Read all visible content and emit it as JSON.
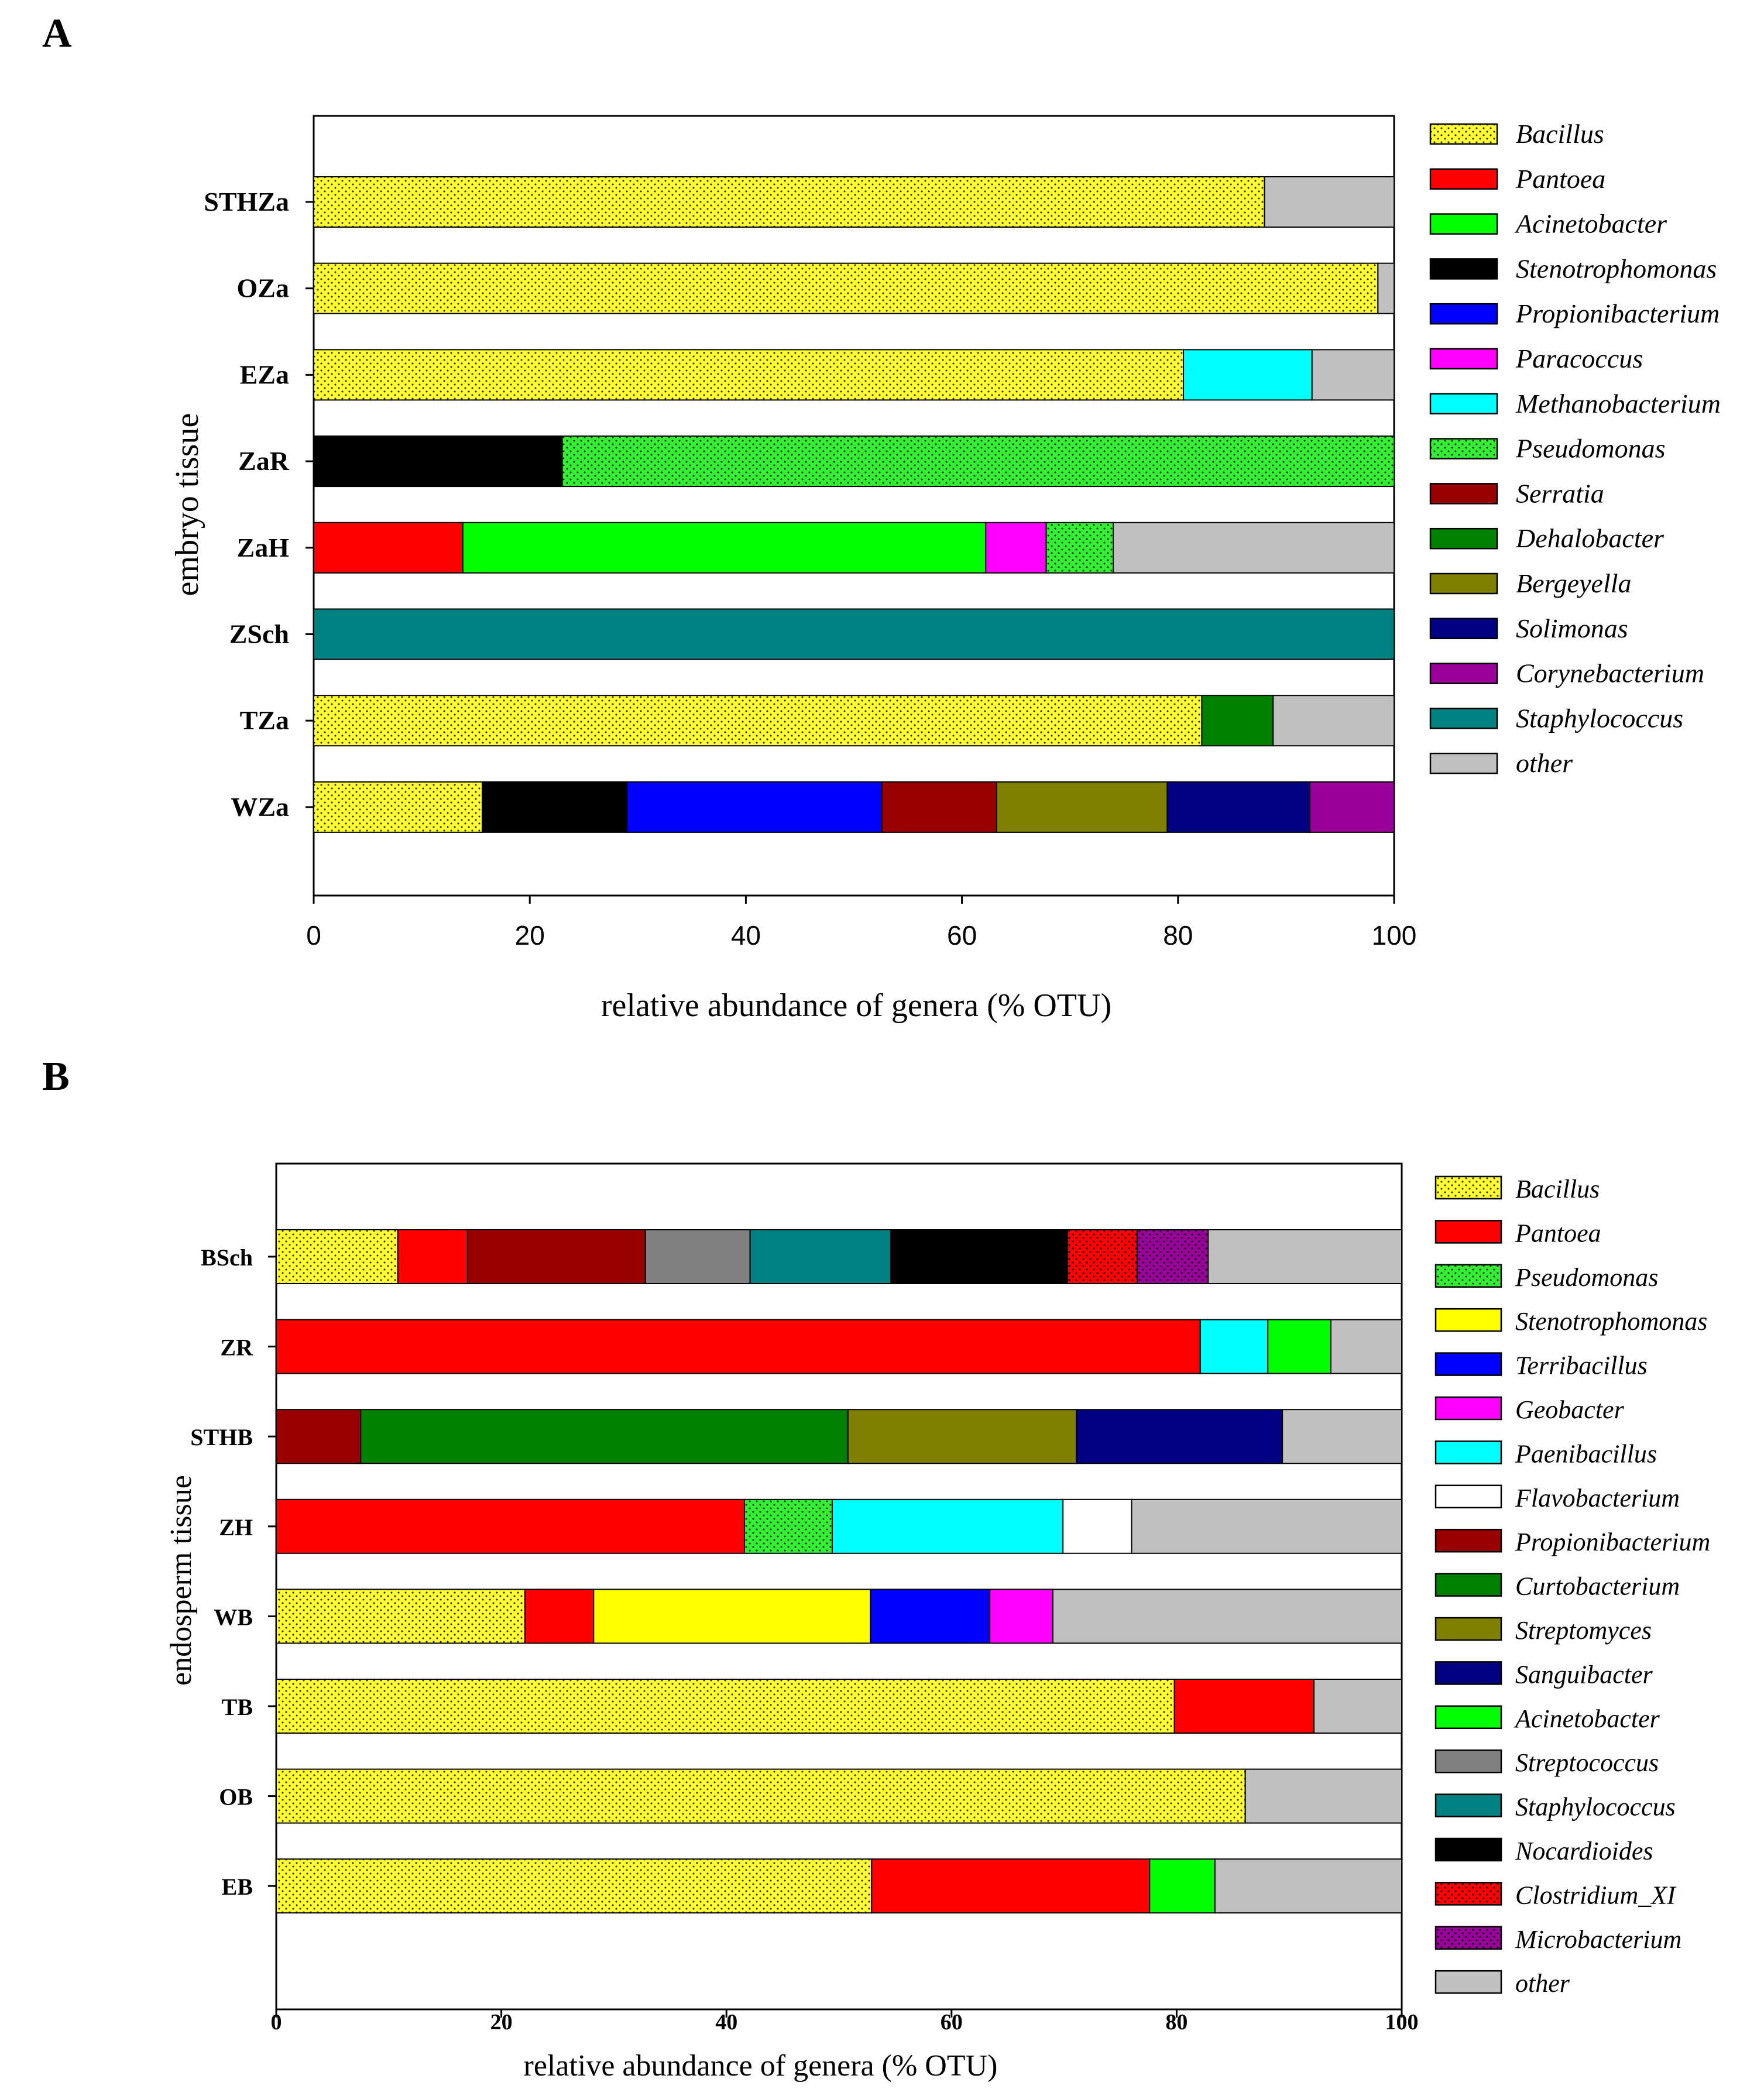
{
  "chart_data": [
    {
      "panel": "A",
      "type": "bar",
      "orientation": "horizontal",
      "stacked": true,
      "xlabel": "relative abundance of genera (% OTU)",
      "ylabel": "embryo tissue",
      "xlim": [
        0,
        100
      ],
      "xticks": [
        "0",
        "20",
        "40",
        "60",
        "80",
        "100"
      ],
      "categories": [
        "STHZa",
        "OZa",
        "EZa",
        "ZaR",
        "ZaH",
        "ZSch",
        "TZa",
        "WZa"
      ],
      "legend_position": "right",
      "series": [
        {
          "name": "Bacillus",
          "color": "#ffff33",
          "pattern": "dots",
          "values": [
            88,
            98.5,
            80.5,
            0,
            0,
            0,
            82.2,
            15.6
          ]
        },
        {
          "name": "Pantoea",
          "color": "#ff0000",
          "pattern": "solid",
          "values": [
            0,
            0,
            0,
            0,
            13.8,
            0,
            0,
            0
          ]
        },
        {
          "name": "Acinetobacter",
          "color": "#00ff00",
          "pattern": "solid",
          "values": [
            0,
            0,
            0,
            0,
            48.4,
            0,
            0,
            0
          ]
        },
        {
          "name": "Stenotrophomonas",
          "color": "#000000",
          "pattern": "solid",
          "values": [
            0,
            0,
            0,
            23,
            0,
            0,
            0,
            13.4
          ]
        },
        {
          "name": "Propionibacterium",
          "color": "#0000ff",
          "pattern": "solid",
          "values": [
            0,
            0,
            0,
            0,
            0,
            0,
            0,
            23.6
          ]
        },
        {
          "name": "Paracoccus",
          "color": "#ff00ff",
          "pattern": "solid",
          "values": [
            0,
            0,
            0,
            0,
            5.6,
            0,
            0,
            0
          ]
        },
        {
          "name": "Methanobacterium",
          "color": "#00ffff",
          "pattern": "solid",
          "values": [
            0,
            0,
            11.9,
            0,
            0,
            0,
            0,
            0
          ]
        },
        {
          "name": "Pseudomonas",
          "color": "#33ee33",
          "pattern": "dots",
          "values": [
            0,
            0,
            0,
            77,
            6.2,
            0,
            0,
            0
          ]
        },
        {
          "name": "Serratia",
          "color": "#990000",
          "pattern": "solid",
          "values": [
            0,
            0,
            0,
            0,
            0,
            0,
            0,
            10.6
          ]
        },
        {
          "name": "Dehalobacter",
          "color": "#008000",
          "pattern": "solid",
          "values": [
            0,
            0,
            0,
            0,
            0,
            0,
            6.6,
            0
          ]
        },
        {
          "name": "Bergeyella",
          "color": "#808000",
          "pattern": "solid",
          "values": [
            0,
            0,
            0,
            0,
            0,
            0,
            0,
            15.8
          ]
        },
        {
          "name": "Solimonas",
          "color": "#000080",
          "pattern": "solid",
          "values": [
            0,
            0,
            0,
            0,
            0,
            0,
            0,
            13.2
          ]
        },
        {
          "name": "Corynebacterium",
          "color": "#990099",
          "pattern": "solid",
          "values": [
            0,
            0,
            0,
            0,
            0,
            0,
            0,
            7.8
          ]
        },
        {
          "name": "Staphylococcus",
          "color": "#008080",
          "pattern": "solid",
          "values": [
            0,
            0,
            0,
            0,
            0,
            100,
            0,
            0
          ]
        },
        {
          "name": "other",
          "color": "#c0c0c0",
          "pattern": "solid",
          "values": [
            12,
            1.5,
            7.6,
            0,
            26,
            0,
            11.2,
            0
          ]
        }
      ]
    },
    {
      "panel": "B",
      "type": "bar",
      "orientation": "horizontal",
      "stacked": true,
      "xlabel": "relative abundance of genera (% OTU)",
      "ylabel": "endosperm tissue",
      "xlim": [
        0,
        100
      ],
      "xticks": [
        "0",
        "20",
        "40",
        "60",
        "80",
        "100"
      ],
      "categories": [
        "BSch",
        "ZR",
        "STHB",
        "ZH",
        "WB",
        "TB",
        "OB",
        "EB"
      ],
      "legend_position": "right",
      "series": [
        {
          "name": "Bacillus",
          "color": "#ffff33",
          "pattern": "dots",
          "values": [
            10.8,
            0,
            0,
            0,
            22.1,
            79.8,
            86.1,
            52.9
          ]
        },
        {
          "name": "Pantoea",
          "color": "#ff0000",
          "pattern": "solid",
          "values": [
            6.2,
            82.1,
            0,
            41.6,
            6.1,
            12.4,
            0,
            24.7
          ]
        },
        {
          "name": "Pseudomonas",
          "color": "#33ee33",
          "pattern": "dots",
          "values": [
            0,
            0,
            0,
            7.8,
            0,
            0,
            0,
            0
          ]
        },
        {
          "name": "Stenotrophomonas",
          "color": "#ffff00",
          "pattern": "solid",
          "values": [
            0,
            0,
            0,
            0,
            24.6,
            0,
            0,
            0
          ]
        },
        {
          "name": "Terribacillus",
          "color": "#0000ff",
          "pattern": "solid",
          "values": [
            0,
            0,
            0,
            0,
            10.6,
            0,
            0,
            0
          ]
        },
        {
          "name": "Geobacter",
          "color": "#ff00ff",
          "pattern": "solid",
          "values": [
            0,
            0,
            0,
            0,
            5.6,
            0,
            0,
            0
          ]
        },
        {
          "name": "Paenibacillus",
          "color": "#00ffff",
          "pattern": "solid",
          "values": [
            0,
            6.0,
            0,
            20.5,
            0,
            0,
            0,
            0
          ]
        },
        {
          "name": "Flavobacterium",
          "color": "#ffffff",
          "pattern": "solid",
          "values": [
            0,
            0,
            0,
            6.1,
            0,
            0,
            0,
            0
          ]
        },
        {
          "name": "Propionibacterium",
          "color": "#990000",
          "pattern": "solid",
          "values": [
            15.8,
            0,
            7.5,
            0,
            0,
            0,
            0,
            0
          ]
        },
        {
          "name": "Curtobacterium",
          "color": "#008000",
          "pattern": "solid",
          "values": [
            0,
            0,
            43.3,
            0,
            0,
            0,
            0,
            0
          ]
        },
        {
          "name": "Streptomyces",
          "color": "#808000",
          "pattern": "solid",
          "values": [
            0,
            0,
            20.3,
            0,
            0,
            0,
            0,
            0
          ]
        },
        {
          "name": "Sanguibacter",
          "color": "#000080",
          "pattern": "solid",
          "values": [
            0,
            0,
            18.3,
            0,
            0,
            0,
            0,
            0
          ]
        },
        {
          "name": "Acinetobacter",
          "color": "#00ff00",
          "pattern": "solid",
          "values": [
            0,
            5.6,
            0,
            0,
            0,
            0,
            0,
            5.8
          ]
        },
        {
          "name": "Streptococcus",
          "color": "#808080",
          "pattern": "solid",
          "values": [
            9.3,
            0,
            0,
            0,
            0,
            0,
            0,
            0
          ]
        },
        {
          "name": "Staphylococcus",
          "color": "#008080",
          "pattern": "solid",
          "values": [
            12.5,
            0,
            0,
            0,
            0,
            0,
            0,
            0
          ]
        },
        {
          "name": "Nocardioides",
          "color": "#000000",
          "pattern": "solid",
          "values": [
            15.7,
            0,
            0,
            0,
            0,
            0,
            0,
            0
          ]
        },
        {
          "name": "Clostridium_XI",
          "color": "#ff0000",
          "pattern": "dark-dots",
          "values": [
            6.2,
            0,
            0,
            0,
            0,
            0,
            0,
            0
          ]
        },
        {
          "name": "Microbacterium",
          "color": "#990099",
          "pattern": "dark-dots",
          "values": [
            6.3,
            0,
            0,
            0,
            0,
            0,
            0,
            0
          ]
        },
        {
          "name": "other",
          "color": "#c0c0c0",
          "pattern": "solid",
          "values": [
            17.2,
            6.3,
            10.6,
            24,
            31,
            7.8,
            13.9,
            16.6
          ]
        }
      ]
    }
  ]
}
